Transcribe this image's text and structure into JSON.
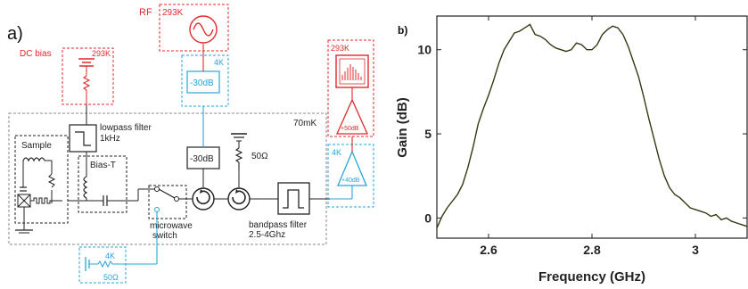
{
  "panel_a": {
    "label": "a)",
    "rf_label": "RF",
    "rf_temp": "293K",
    "dc_label": "DC bias",
    "dc_temp": "293K",
    "amp_temp": "293K",
    "fridge_temp": "70mK",
    "att_4k_label": "4K",
    "att_4k_value": "-30dB",
    "att_mk_value": "-30dB",
    "lowpass_label": "lowpass filter",
    "lowpass_freq": "1kHz",
    "sample_label": "Sample",
    "biast_label": "Bias-T",
    "switch_label_1": "microwave",
    "switch_label_2": "switch",
    "term_mk_value": "50Ω",
    "bandpass_label": "bandpass filter",
    "bandpass_range": "2.5-4Ghz",
    "amp_rt_gain": "+50dB",
    "amp_4k_temp": "4K",
    "amp_4k_gain": "+40dB",
    "load_temp": "4K",
    "load_value": "50Ω",
    "colors": {
      "room_temp": "#e0292c",
      "four_kelvin": "#29a3d9",
      "cold": "#222222"
    }
  },
  "panel_b": {
    "label": "b)",
    "chart_data": {
      "type": "line",
      "title": "",
      "xlabel": "Frequency (GHz)",
      "ylabel": "Gain (dB)",
      "xlim": [
        2.5,
        3.1
      ],
      "ylim": [
        -1.2,
        12.0
      ],
      "xticks": [
        "2.6",
        "2.8",
        "3"
      ],
      "yticks": [
        "0",
        "5",
        "10"
      ],
      "grid": false,
      "line_color": "#2f3b12",
      "series": [
        {
          "x": [
            2.5,
            2.51,
            2.52,
            2.53,
            2.54,
            2.55,
            2.56,
            2.57,
            2.58,
            2.59,
            2.6,
            2.61,
            2.62,
            2.63,
            2.64,
            2.65,
            2.66,
            2.67,
            2.68,
            2.69,
            2.7,
            2.71,
            2.72,
            2.73,
            2.74,
            2.75,
            2.76,
            2.77,
            2.78,
            2.79,
            2.8,
            2.81,
            2.82,
            2.83,
            2.84,
            2.85,
            2.86,
            2.87,
            2.88,
            2.89,
            2.9,
            2.91,
            2.92,
            2.93,
            2.94,
            2.95,
            2.96,
            2.97,
            2.98,
            2.99,
            3.0,
            3.01,
            3.02,
            3.03,
            3.04,
            3.05,
            3.06,
            3.07,
            3.08,
            3.09,
            3.1
          ],
          "values": [
            -0.6,
            0.1,
            0.6,
            1.0,
            1.4,
            2.0,
            3.0,
            4.2,
            5.6,
            6.5,
            7.3,
            8.2,
            9.2,
            10.0,
            10.5,
            11.0,
            11.1,
            11.3,
            11.5,
            10.9,
            10.8,
            10.6,
            10.3,
            10.1,
            10.0,
            9.9,
            10.0,
            10.4,
            10.3,
            10.0,
            10.0,
            10.3,
            10.9,
            11.2,
            11.4,
            11.3,
            10.9,
            10.2,
            9.3,
            8.4,
            7.2,
            5.9,
            4.7,
            3.5,
            2.5,
            1.8,
            1.4,
            1.2,
            0.9,
            0.6,
            0.5,
            0.4,
            0.3,
            0.1,
            0.2,
            -0.1,
            0.0,
            -0.2,
            -0.3,
            -0.4,
            -0.5
          ]
        }
      ]
    }
  }
}
